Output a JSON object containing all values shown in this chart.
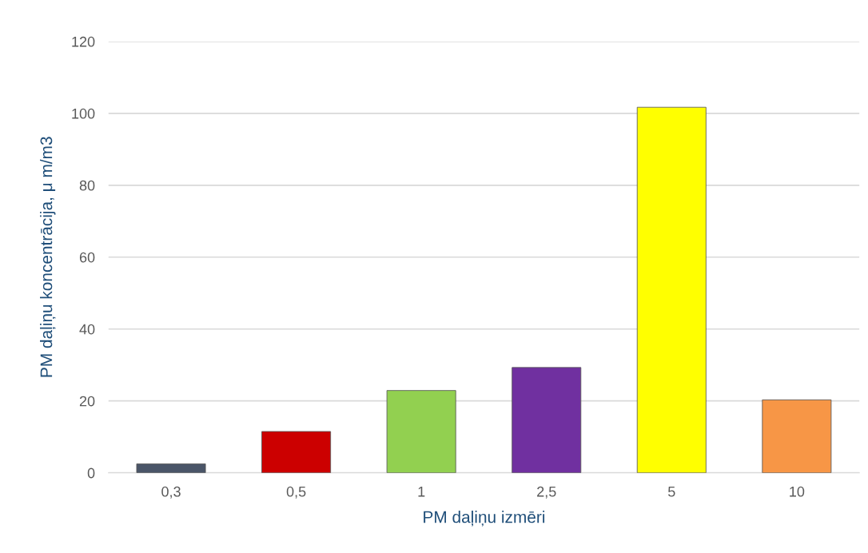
{
  "chart_data": {
    "type": "bar",
    "xlabel": "PM daļiņu izmēri",
    "ylabel": "PM daļiņu koncentrācija, μ m/m3",
    "categories": [
      "0,3",
      "0,5",
      "1",
      "2,5",
      "5",
      "10"
    ],
    "values": [
      2.5,
      11.5,
      22.9,
      29.3,
      101.7,
      20.3
    ],
    "colors": [
      "#4a5568",
      "#cc0000",
      "#92d050",
      "#7030a0",
      "#ffff00",
      "#f79646"
    ],
    "ylim": [
      0,
      120
    ],
    "yticks": [
      0,
      20,
      40,
      60,
      80,
      100,
      120
    ],
    "grid": "y",
    "legend": false
  }
}
